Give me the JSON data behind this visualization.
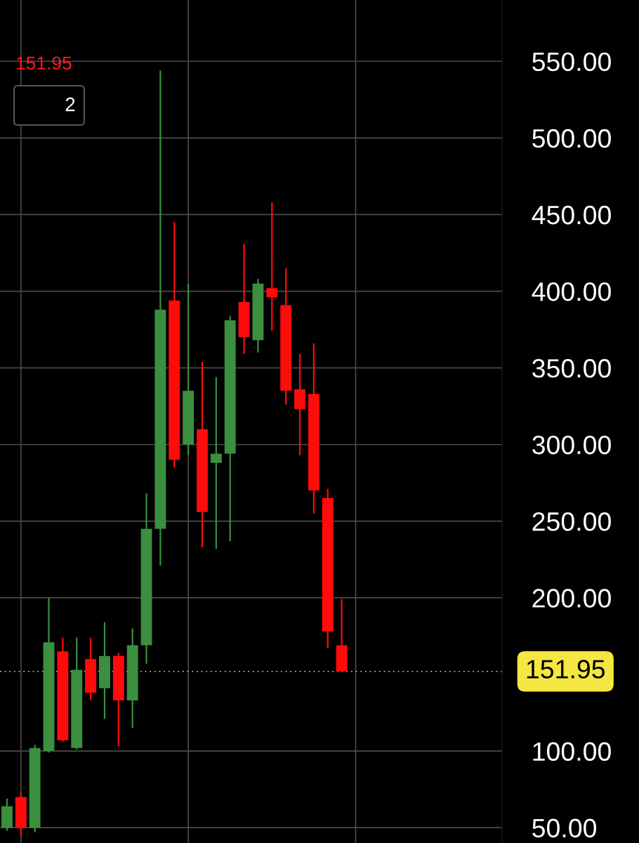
{
  "chart_data": {
    "type": "candlestick",
    "subtitle": "151.95",
    "annotations": [
      "2"
    ],
    "categories": [
      null,
      null,
      null,
      null,
      null,
      null,
      null,
      null,
      null,
      null,
      null,
      null,
      null,
      null,
      null,
      null,
      null,
      null,
      null,
      null,
      null,
      null,
      null,
      null,
      null,
      null,
      null,
      null,
      null,
      null,
      null,
      null,
      null,
      null,
      null,
      null
    ],
    "ohlc": [
      [
        50,
        69,
        48,
        64
      ],
      [
        70,
        73,
        45,
        50
      ],
      [
        50,
        104,
        47,
        102
      ],
      [
        100,
        200,
        99,
        171
      ],
      [
        165,
        174,
        106,
        107
      ],
      [
        102,
        174,
        101,
        153
      ],
      [
        160,
        174,
        133,
        138
      ],
      [
        141,
        184,
        121,
        162
      ],
      [
        162,
        164,
        103,
        133
      ],
      [
        133,
        180,
        115,
        169
      ],
      [
        169,
        268,
        157,
        245
      ],
      [
        245,
        544,
        221,
        388
      ],
      [
        394,
        445,
        285,
        290
      ],
      [
        300,
        405,
        293,
        335
      ],
      [
        310,
        354,
        233,
        256
      ],
      [
        288,
        344,
        232,
        294
      ],
      [
        294,
        384,
        237,
        381
      ],
      [
        393,
        431,
        359,
        370
      ],
      [
        368,
        408,
        360,
        405
      ],
      [
        402,
        458,
        374,
        396
      ],
      [
        391,
        415,
        326,
        335
      ],
      [
        336,
        359,
        293,
        323
      ],
      [
        333,
        366,
        255,
        270
      ],
      [
        265,
        271,
        167,
        178
      ],
      [
        169,
        199,
        151.95,
        151.95
      ],
      null,
      null,
      null,
      null,
      null,
      null,
      null,
      null,
      null,
      null,
      null
    ],
    "colors": [
      "#3b8f3e",
      "#ff0b0b",
      "#3b8f3e",
      "#3b8f3e",
      "#ff0b0b",
      "#3b8f3e",
      "#ff0b0b",
      "#3b8f3e",
      "#ff0b0b",
      "#3b8f3e",
      "#3b8f3e",
      "#3b8f3e",
      "#ff0b0b",
      "#3b8f3e",
      "#ff0b0b",
      "#3b8f3e",
      "#3b8f3e",
      "#ff0b0b",
      "#3b8f3e",
      "#ff0b0b",
      "#ff0b0b",
      "#ff0b0b",
      "#ff0b0b",
      "#ff0b0b",
      "#ff0b0b",
      null,
      null,
      null,
      null,
      null,
      null,
      null,
      null,
      null,
      null,
      null
    ],
    "ylim": [
      40,
      590
    ],
    "yticks": [
      {
        "value": 50,
        "label": "50.00"
      },
      {
        "value": 100,
        "label": "100.00"
      },
      {
        "value": 200,
        "label": "200.00"
      },
      {
        "value": 250,
        "label": "250.00"
      },
      {
        "value": 300,
        "label": "300.00"
      },
      {
        "value": 350,
        "label": "350.00"
      },
      {
        "value": 400,
        "label": "400.00"
      },
      {
        "value": 450,
        "label": "450.00"
      },
      {
        "value": 500,
        "label": "500.00"
      },
      {
        "value": 550,
        "label": "550.00"
      }
    ],
    "grid": true,
    "ref_lines": [
      {
        "axis": "y",
        "value": 151.95,
        "label": "151.95",
        "color": "#f5e642",
        "line_style": "dotted"
      }
    ]
  }
}
